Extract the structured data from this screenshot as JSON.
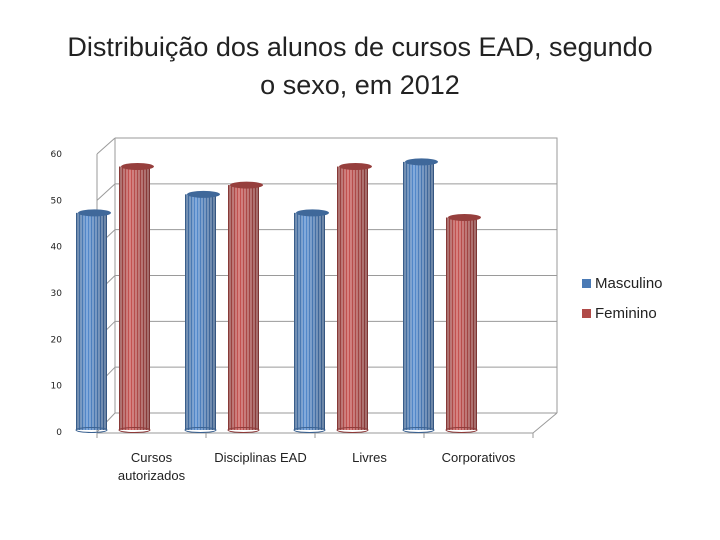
{
  "chart_data": {
    "type": "bar",
    "title_line1": "Distribuição dos alunos de cursos EAD, segundo",
    "title_line2": "o sexo, em 2012",
    "categories": [
      "Cursos autorizados",
      "Disciplinas EAD",
      "Livres",
      "Corporativos"
    ],
    "category_lines": [
      [
        "Cursos",
        "autorizados"
      ],
      [
        "Disciplinas EAD"
      ],
      [
        "Livres"
      ],
      [
        "Corporativos"
      ]
    ],
    "series": [
      {
        "name": "Masculino",
        "values": [
          46,
          50,
          46,
          57
        ],
        "color": "#4a7ab5"
      },
      {
        "name": "Feminino",
        "values": [
          56,
          52,
          56,
          45
        ],
        "color": "#b04a48"
      }
    ],
    "yticks": [
      "0",
      "10",
      "20",
      "30",
      "40",
      "50",
      "60"
    ],
    "ylim": [
      0,
      60
    ],
    "grid": true,
    "legend_position": "right"
  }
}
